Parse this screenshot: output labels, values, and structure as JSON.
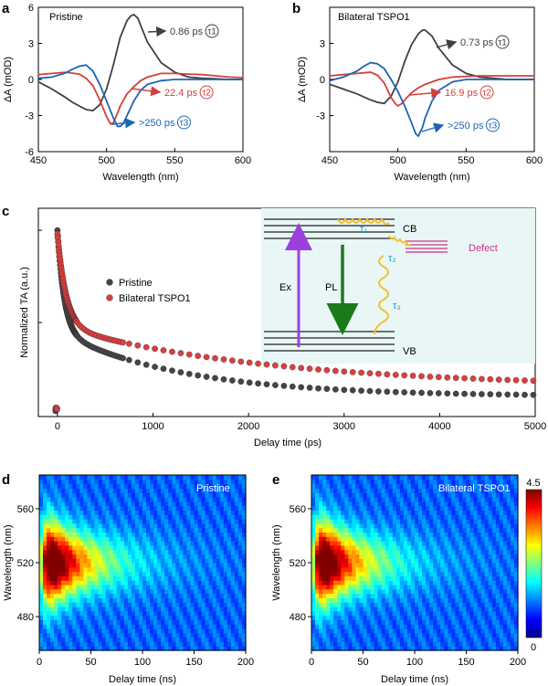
{
  "chart_data": [
    {
      "panel": "a",
      "type": "line",
      "inset_label": "Pristine",
      "xlabel": "Wavelength (nm)",
      "ylabel": "ΔA (mOD)",
      "xlim": [
        450,
        600
      ],
      "ylim": [
        -6,
        6
      ],
      "xticks": [
        450,
        500,
        550,
        600
      ],
      "yticks": [
        6,
        3,
        0,
        -3,
        -6
      ],
      "series": [
        {
          "color": "#404040",
          "tau": "τ1",
          "label": "0.86 ps",
          "x": [
            450,
            460,
            470,
            475,
            480,
            485,
            490,
            495,
            500,
            505,
            510,
            515,
            518,
            520,
            523,
            525,
            530,
            540,
            550,
            560,
            570,
            580,
            590,
            600
          ],
          "y": [
            -0.2,
            -0.8,
            -1.5,
            -1.9,
            -2.2,
            -2.5,
            -2.6,
            -2.1,
            -0.8,
            1.2,
            3.5,
            4.9,
            5.3,
            5.4,
            5.1,
            4.5,
            3.1,
            1.4,
            0.6,
            0.2,
            0.1,
            0.05,
            0,
            0
          ]
        },
        {
          "color": "#d43f3a",
          "tau": "τ2",
          "label": "22.4 ps",
          "x": [
            450,
            460,
            470,
            480,
            485,
            490,
            495,
            500,
            503,
            505,
            508,
            510,
            515,
            520,
            525,
            530,
            540,
            550,
            560,
            570,
            580,
            590,
            600
          ],
          "y": [
            0.4,
            0.5,
            0.6,
            0.45,
            0.1,
            -0.5,
            -1.7,
            -3.1,
            -3.7,
            -3.6,
            -2.8,
            -2.2,
            -1.2,
            -0.6,
            -0.1,
            0.2,
            0.5,
            0.5,
            0.45,
            0.4,
            0.3,
            0.2,
            0.15
          ]
        },
        {
          "color": "#1e64b4",
          "tau": "τ3",
          "label": ">250 ps",
          "x": [
            450,
            460,
            470,
            475,
            480,
            485,
            490,
            495,
            500,
            505,
            508,
            510,
            512,
            515,
            520,
            525,
            530,
            540,
            550,
            560,
            570,
            580,
            590,
            600
          ],
          "y": [
            0.1,
            0.2,
            0.55,
            0.85,
            1.1,
            1.2,
            0.7,
            -0.4,
            -1.8,
            -3.2,
            -3.9,
            -3.9,
            -3.7,
            -3.0,
            -1.8,
            -0.9,
            -0.4,
            -0.1,
            0,
            0,
            0,
            0,
            0,
            0
          ]
        }
      ]
    },
    {
      "panel": "b",
      "type": "line",
      "inset_label": "Bilateral TSPO1",
      "xlabel": "Wavelength (nm)",
      "ylabel": "ΔA (mOD)",
      "xlim": [
        450,
        600
      ],
      "ylim": [
        -6,
        6
      ],
      "xticks": [
        450,
        500,
        550,
        600
      ],
      "yticks": [
        3,
        0,
        -3
      ],
      "series": [
        {
          "color": "#404040",
          "tau": "τ1",
          "label": "0.73 ps",
          "x": [
            450,
            460,
            470,
            480,
            485,
            490,
            495,
            500,
            505,
            510,
            515,
            518,
            520,
            525,
            530,
            540,
            550,
            560,
            570,
            580,
            590,
            600
          ],
          "y": [
            -0.4,
            -0.8,
            -1.2,
            -1.7,
            -1.9,
            -2.0,
            -1.4,
            -0.2,
            1.5,
            2.9,
            3.8,
            4.1,
            4.1,
            3.6,
            2.6,
            1.2,
            0.5,
            0.2,
            0.1,
            0,
            0,
            0
          ]
        },
        {
          "color": "#d43f3a",
          "tau": "τ2",
          "label": "16.9 ps",
          "x": [
            450,
            460,
            470,
            480,
            485,
            490,
            495,
            498,
            500,
            503,
            505,
            510,
            515,
            520,
            525,
            530,
            540,
            550,
            560,
            570,
            580,
            590,
            600
          ],
          "y": [
            0.3,
            0.4,
            0.5,
            0.6,
            0.35,
            -0.3,
            -1.5,
            -2.0,
            -2.2,
            -2.0,
            -1.7,
            -1.1,
            -0.7,
            -0.4,
            -0.2,
            0,
            0.2,
            0.25,
            0.3,
            0.3,
            0.3,
            0.3,
            0.3
          ]
        },
        {
          "color": "#1e64b4",
          "tau": "τ3",
          "label": ">250 ps",
          "x": [
            450,
            460,
            470,
            475,
            480,
            485,
            490,
            495,
            500,
            505,
            510,
            513,
            515,
            518,
            520,
            525,
            530,
            540,
            550,
            560,
            570,
            580,
            590,
            600
          ],
          "y": [
            -0.1,
            0.2,
            0.7,
            1.1,
            1.4,
            1.3,
            0.9,
            0,
            -1.0,
            -2.2,
            -3.6,
            -4.5,
            -4.7,
            -4.0,
            -3.2,
            -1.8,
            -0.9,
            -0.2,
            0,
            0,
            0,
            0,
            0,
            0
          ]
        }
      ]
    },
    {
      "panel": "c",
      "type": "scatter",
      "xlabel": "Delay time (ps)",
      "ylabel": "Normalized TA (a.u.)",
      "xlim": [
        -200,
        5000
      ],
      "ylim": [
        0,
        1.05
      ],
      "xticks": [
        0,
        1000,
        2000,
        3000,
        4000,
        5000
      ],
      "legend": "center-left",
      "series": [
        {
          "name": "Pristine",
          "color": "#454545",
          "tau_fast": 70,
          "tau_slow": 1300,
          "a_fast": 0.55,
          "a_slow": 0.35,
          "offset": 0.1
        },
        {
          "name": "Bilateral TSPO1",
          "color": "#d84040",
          "tau_fast": 90,
          "tau_slow": 2200,
          "a_fast": 0.5,
          "a_slow": 0.33,
          "offset": 0.15
        }
      ],
      "inset": {
        "labels": {
          "cb": "CB",
          "vb": "VB",
          "defect": "Defect",
          "ex": "Ex",
          "pl": "PL",
          "t1": "τ₁",
          "t2": "τ₂",
          "t3": "τ₃"
        },
        "colors": {
          "background": "#e8f6f6",
          "ex_arrow": "#9b3fe0",
          "pl_arrow": "#1a7a1a",
          "wave": "#f5c02a",
          "defect": "#d0308a",
          "tau_text": "#2e9ad0"
        }
      }
    },
    {
      "panel": "d",
      "type": "heatmap",
      "inset_label": "Pristine",
      "xlabel": "Delay time (ns)",
      "ylabel": "Wavelength (nm)",
      "xlim": [
        0,
        200
      ],
      "ylim": [
        455,
        585
      ],
      "xticks": [
        0,
        50,
        100,
        150,
        200
      ],
      "yticks": [
        560,
        520,
        480
      ],
      "peak_wavelength": 520,
      "peak_time": 15
    },
    {
      "panel": "e",
      "type": "heatmap",
      "inset_label": "Bilateral TSPO1",
      "xlabel": "Delay time (ns)",
      "ylabel": "Wavelength (nm)",
      "xlim": [
        0,
        200
      ],
      "ylim": [
        455,
        585
      ],
      "xticks": [
        0,
        50,
        100,
        150,
        200
      ],
      "yticks": [
        560,
        520,
        480
      ],
      "peak_wavelength": 520,
      "peak_time": 15,
      "colorbar": {
        "min": "0",
        "max": "4.5"
      }
    }
  ]
}
